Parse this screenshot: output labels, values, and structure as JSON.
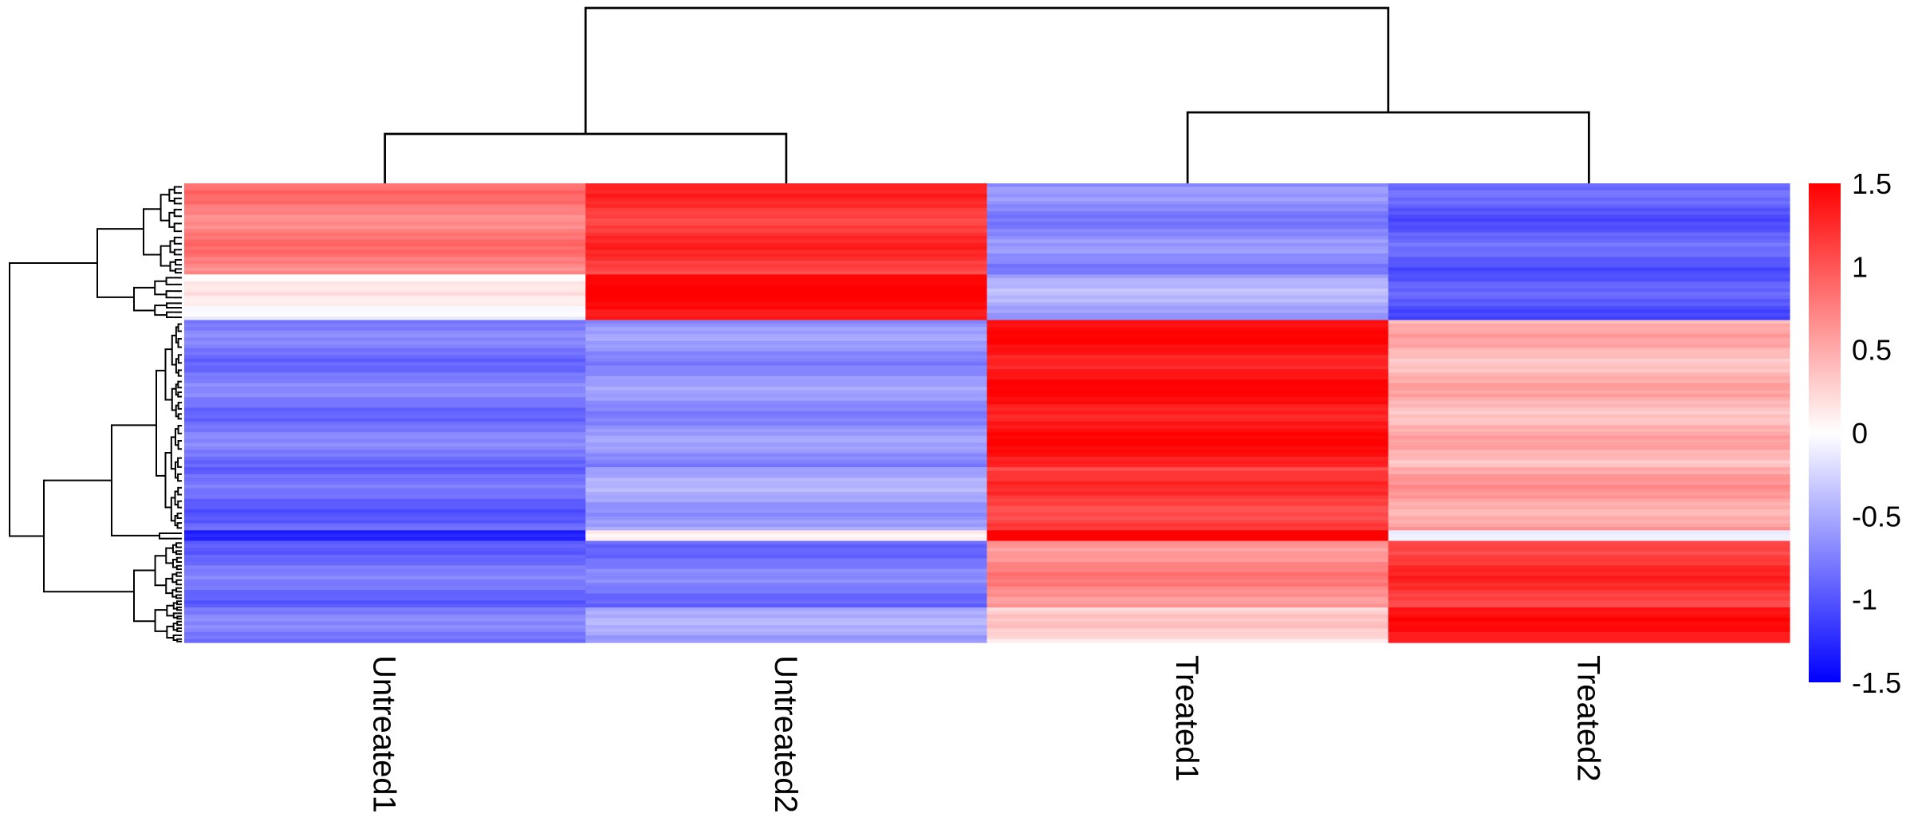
{
  "chart_data": {
    "type": "heatmap",
    "columns": [
      "Untreated1",
      "Untreated2",
      "Treated1",
      "Treated2"
    ],
    "segments": [
      {
        "rows": 26,
        "values": [
          0.78,
          1.2,
          -0.7,
          -0.95
        ]
      },
      {
        "rows": 13,
        "values": [
          0.05,
          1.45,
          -0.5,
          -1.0
        ]
      },
      {
        "rows": 42,
        "values": [
          -0.8,
          -0.65,
          1.4,
          0.45
        ]
      },
      {
        "rows": 18,
        "values": [
          -0.9,
          -0.55,
          1.15,
          0.55
        ]
      },
      {
        "rows": 3,
        "values": [
          -1.4,
          0.0,
          1.5,
          -0.2
        ]
      },
      {
        "rows": 19,
        "values": [
          -0.85,
          -0.8,
          0.7,
          1.2
        ]
      },
      {
        "rows": 10,
        "values": [
          -0.8,
          -0.55,
          0.25,
          1.35
        ]
      }
    ],
    "color_scale": {
      "min": -1.5,
      "max": 1.5,
      "low": "#0000ff",
      "mid": "#ffffff",
      "high": "#ff0000",
      "ticks": [
        "1.5",
        "1",
        "0.5",
        "0",
        "-0.5",
        "-1",
        "-1.5"
      ]
    },
    "column_dendrogram": true,
    "row_dendrogram": true,
    "legend_position": "right"
  }
}
